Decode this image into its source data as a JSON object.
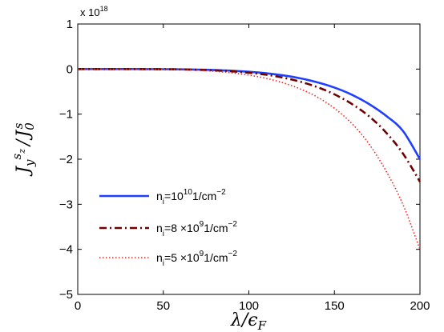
{
  "chart_data": {
    "type": "line",
    "title": "",
    "xlabel": "λ/ϵ_F",
    "ylabel": "J_y^{s_z}/J_0^s",
    "xlim": [
      0,
      200
    ],
    "ylim": [
      -5,
      1
    ],
    "y_multiplier_text": "x 10",
    "y_multiplier_exp": "18",
    "xticks": [
      "0",
      "50",
      "100",
      "150",
      "200"
    ],
    "yticks": [
      "1",
      "0",
      "−1",
      "−2",
      "−3",
      "−4",
      "−5"
    ],
    "grid": false,
    "legend_position": "lower-left",
    "x": [
      0,
      10,
      20,
      30,
      40,
      50,
      60,
      70,
      80,
      90,
      100,
      110,
      120,
      130,
      140,
      150,
      160,
      170,
      180,
      190,
      200
    ],
    "series": [
      {
        "legend": {
          "pre": "n",
          "sub": "i",
          "mid": "=10",
          "sup": "10",
          "post": "1/cm",
          "post_sup": "−2"
        },
        "color": "#1f3fff",
        "style": "solid",
        "values": [
          0,
          0,
          0,
          0,
          -0.001,
          -0.003,
          -0.006,
          -0.012,
          -0.022,
          -0.037,
          -0.06,
          -0.093,
          -0.14,
          -0.205,
          -0.293,
          -0.41,
          -0.565,
          -0.77,
          -1.03,
          -1.37,
          -2.0
        ]
      },
      {
        "legend": {
          "pre": "n",
          "sub": "i",
          "mid": "=8 ×10",
          "sup": "9",
          "post": "1/cm",
          "post_sup": "−2"
        },
        "color": "#700000",
        "style": "dashdot",
        "values": [
          0,
          0,
          0,
          0,
          -0.001,
          -0.004,
          -0.008,
          -0.016,
          -0.029,
          -0.05,
          -0.082,
          -0.125,
          -0.19,
          -0.28,
          -0.4,
          -0.56,
          -0.77,
          -1.04,
          -1.4,
          -1.87,
          -2.5
        ]
      },
      {
        "legend": {
          "pre": "n",
          "sub": "i",
          "mid": "=5 ×10",
          "sup": "9",
          "post": "1/cm",
          "post_sup": "−2"
        },
        "color": "#ff2020",
        "style": "dotted",
        "values": [
          0,
          0,
          0,
          -0.001,
          -0.003,
          -0.007,
          -0.014,
          -0.027,
          -0.05,
          -0.085,
          -0.135,
          -0.205,
          -0.305,
          -0.44,
          -0.62,
          -0.87,
          -1.2,
          -1.65,
          -2.25,
          -3.0,
          -4.0
        ]
      }
    ]
  }
}
